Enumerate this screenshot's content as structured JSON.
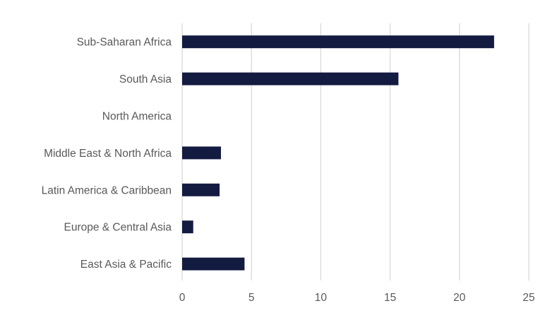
{
  "chart_data": {
    "type": "bar",
    "orientation": "horizontal",
    "categories": [
      "Sub-Saharan Africa",
      "South Asia",
      "North America",
      "Middle East & North Africa",
      "Latin America & Caribbean",
      "Europe & Central Asia",
      "East Asia & Pacific"
    ],
    "values": [
      22.5,
      15.6,
      0,
      2.8,
      2.7,
      0.8,
      4.5
    ],
    "xlim": [
      0,
      25
    ],
    "x_ticks": [
      0,
      5,
      10,
      15,
      20,
      25
    ],
    "grid": "vertical",
    "legend": "none",
    "bar_color": "#141b41",
    "grid_color": "#d9d9d9",
    "text_color": "#595959"
  }
}
